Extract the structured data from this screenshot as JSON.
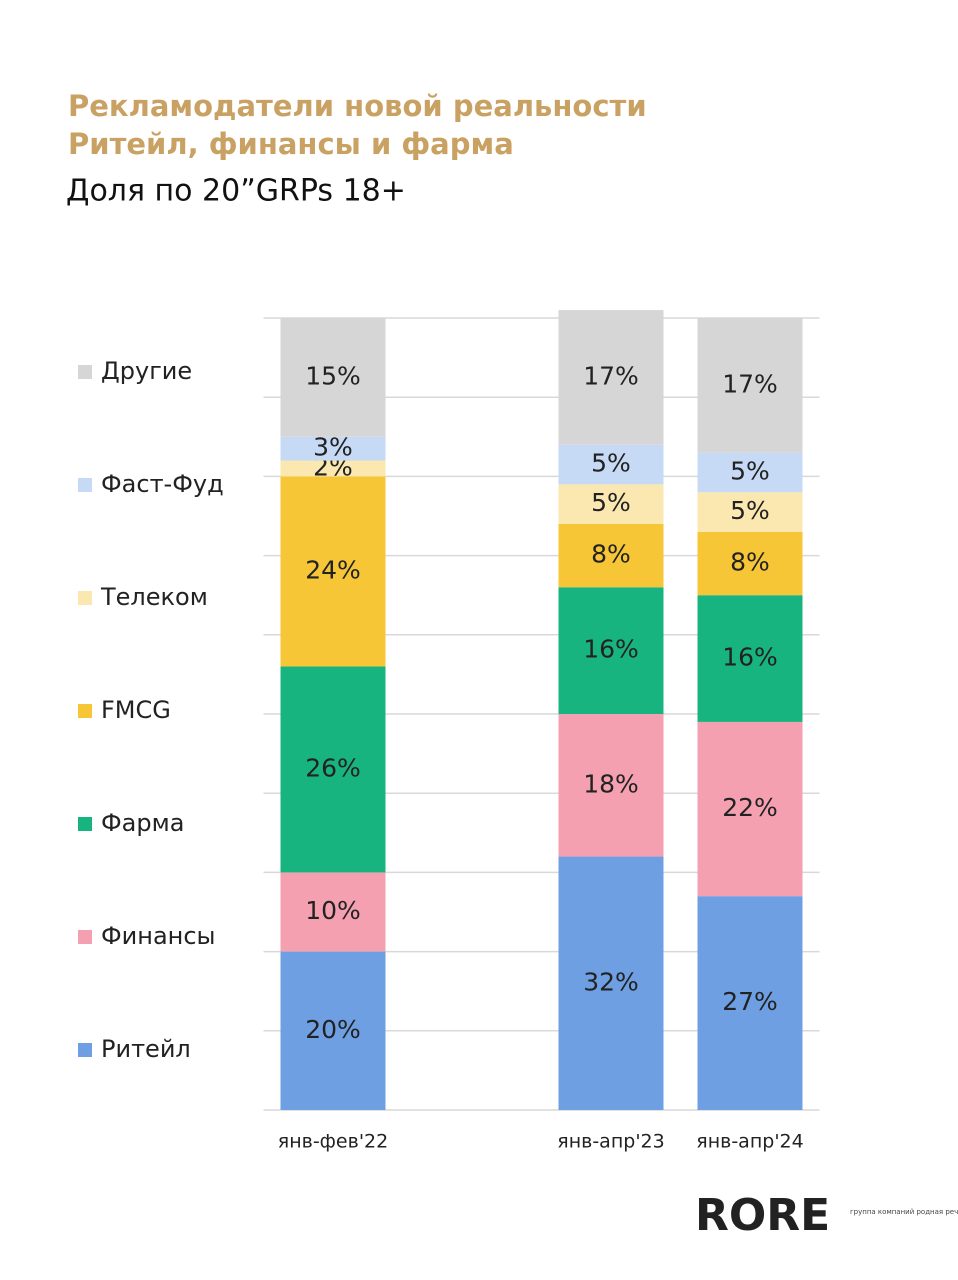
{
  "chart_data": {
    "type": "stacked_bar",
    "title_lines": [
      "Рекламодатели новой реальности",
      "Ритейл, финансы и фарма"
    ],
    "subtitle": "Доля по 20”GRPs 18+",
    "categories": [
      "янв-фев'22",
      null,
      "янв-апр'23",
      "янв-апр'24"
    ],
    "series": [
      {
        "name": "Ритейл",
        "color": "#6f9fe3",
        "values": [
          20,
          null,
          32,
          27
        ],
        "value_labels": [
          "20%",
          null,
          "32%",
          "27%"
        ]
      },
      {
        "name": "Финансы",
        "color": "#f4a0b1",
        "values": [
          10,
          null,
          18,
          22
        ],
        "value_labels": [
          "10%",
          null,
          "18%",
          "22%"
        ]
      },
      {
        "name": "Фарма",
        "color": "#18b47f",
        "values": [
          26,
          null,
          16,
          16
        ],
        "value_labels": [
          "26%",
          null,
          "16%",
          "16%"
        ]
      },
      {
        "name": "FMCG",
        "color": "#f7c637",
        "values": [
          24,
          null,
          8,
          8
        ],
        "value_labels": [
          "24%",
          null,
          "8%",
          "8%"
        ]
      },
      {
        "name": "Телеком",
        "color": "#fbe8b0",
        "values": [
          2,
          null,
          5,
          5
        ],
        "value_labels": [
          "2%",
          null,
          "5%",
          "5%"
        ]
      },
      {
        "name": "Фаст-Фуд",
        "color": "#c6d9f5",
        "values": [
          3,
          null,
          5,
          5
        ],
        "value_labels": [
          "3%",
          null,
          "5%",
          "5%"
        ]
      },
      {
        "name": "Другие",
        "color": "#d6d6d6",
        "values": [
          15,
          null,
          17,
          17
        ],
        "value_labels": [
          "15%",
          null,
          "17%",
          "17%"
        ]
      }
    ],
    "ylim": [
      0,
      100
    ],
    "yticks": [
      0,
      10,
      20,
      30,
      40,
      50,
      60,
      70,
      80,
      90,
      100
    ],
    "ytick_labels_shown": false,
    "grid": true,
    "legend": "left"
  },
  "logo": {
    "text": "RORE",
    "tagline": "группа компаний родная речь"
  }
}
